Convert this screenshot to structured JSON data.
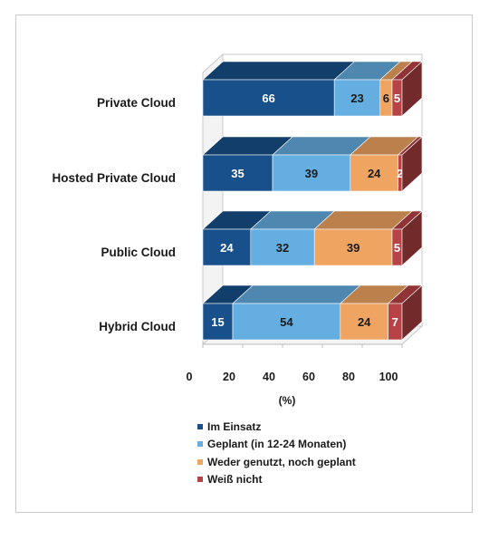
{
  "chart_data": {
    "type": "bar",
    "orientation": "horizontal",
    "stacked": true,
    "three_d": true,
    "categories": [
      "Private Cloud",
      "Hosted Private Cloud",
      "Public Cloud",
      "Hybrid Cloud"
    ],
    "series": [
      {
        "name": "Im Einsatz",
        "values": [
          66,
          35,
          24,
          15
        ],
        "color": "#17508a"
      },
      {
        "name": "Geplant (in 12-24 Monaten)",
        "values": [
          23,
          39,
          32,
          54
        ],
        "color": "#64aee2"
      },
      {
        "name": "Weder genutzt, noch geplant",
        "values": [
          6,
          24,
          39,
          24
        ],
        "color": "#f0a461"
      },
      {
        "name": "Weiß nicht",
        "values": [
          5,
          2,
          5,
          7
        ],
        "color": "#b84346"
      }
    ],
    "xlabel": "(%)",
    "ylabel": "",
    "xlim": [
      0,
      100
    ],
    "xticks": [
      "0",
      "20",
      "40",
      "60",
      "80",
      "100"
    ],
    "grid": false,
    "legend_position": "bottom"
  }
}
